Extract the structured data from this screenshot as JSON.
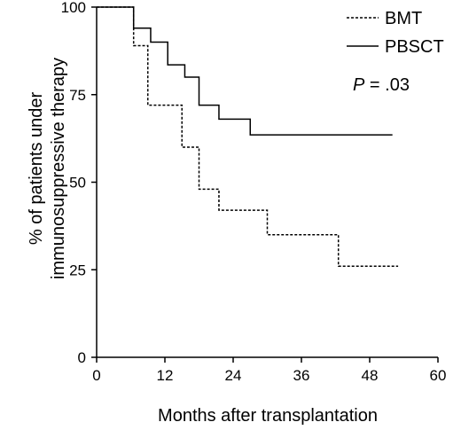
{
  "chart_data": {
    "type": "line",
    "step": true,
    "xlabel": "Months after transplantation",
    "ylabel_lines": [
      "% of patients under",
      "immunosuppressive therapy"
    ],
    "xlim": [
      0,
      60
    ],
    "ylim": [
      0,
      100
    ],
    "xticks": [
      0,
      12,
      24,
      36,
      48,
      60
    ],
    "yticks": [
      0,
      25,
      50,
      75,
      100
    ],
    "grid": false,
    "legend_position": "top-right",
    "annotation": {
      "italic": "P",
      "rest": " = .03"
    },
    "series": [
      {
        "name": "BMT",
        "style": "dashed",
        "x": [
          0,
          6.5,
          9,
          15,
          18,
          21.5,
          30,
          42.5,
          53
        ],
        "y": [
          100,
          89,
          72,
          60,
          48,
          42,
          35,
          26,
          26
        ]
      },
      {
        "name": "PBSCT",
        "style": "solid",
        "x": [
          0,
          6.5,
          9.5,
          12.5,
          15.5,
          18,
          21.5,
          27,
          52
        ],
        "y": [
          100,
          94,
          90,
          83.5,
          80,
          72,
          68,
          63.5,
          63.5
        ]
      }
    ]
  }
}
